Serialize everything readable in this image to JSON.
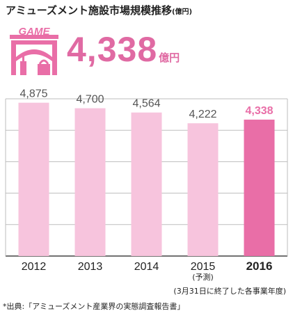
{
  "header": {
    "title": "アミューズメント施設市場規模推移",
    "title_unit": "(億円)",
    "total_value": "4,338",
    "total_unit": "億円",
    "badge_text": "GAME",
    "badge_icon": "arcade-building-icon"
  },
  "chart_data": {
    "type": "bar",
    "categories": [
      "2012",
      "2013",
      "2014",
      "2015",
      "2016"
    ],
    "category_sublabels": [
      "",
      "",
      "",
      "(予測)",
      ""
    ],
    "values": [
      4875,
      4700,
      4564,
      4222,
      4338
    ],
    "value_labels": [
      "4,875",
      "4,700",
      "4,564",
      "4,222",
      "4,338"
    ],
    "highlight_index": 4,
    "ylim": [
      0,
      5000
    ],
    "grid": true,
    "colors": {
      "bar": "#f7c4dd",
      "highlight": "#e96ea7",
      "label": "#555555",
      "highlight_label": "#e96ea7"
    }
  },
  "footer": {
    "note": "(3月31日に終了した各事業年度)",
    "source": "*出典:「アミューズメント産業界の実態調査報告書」"
  }
}
